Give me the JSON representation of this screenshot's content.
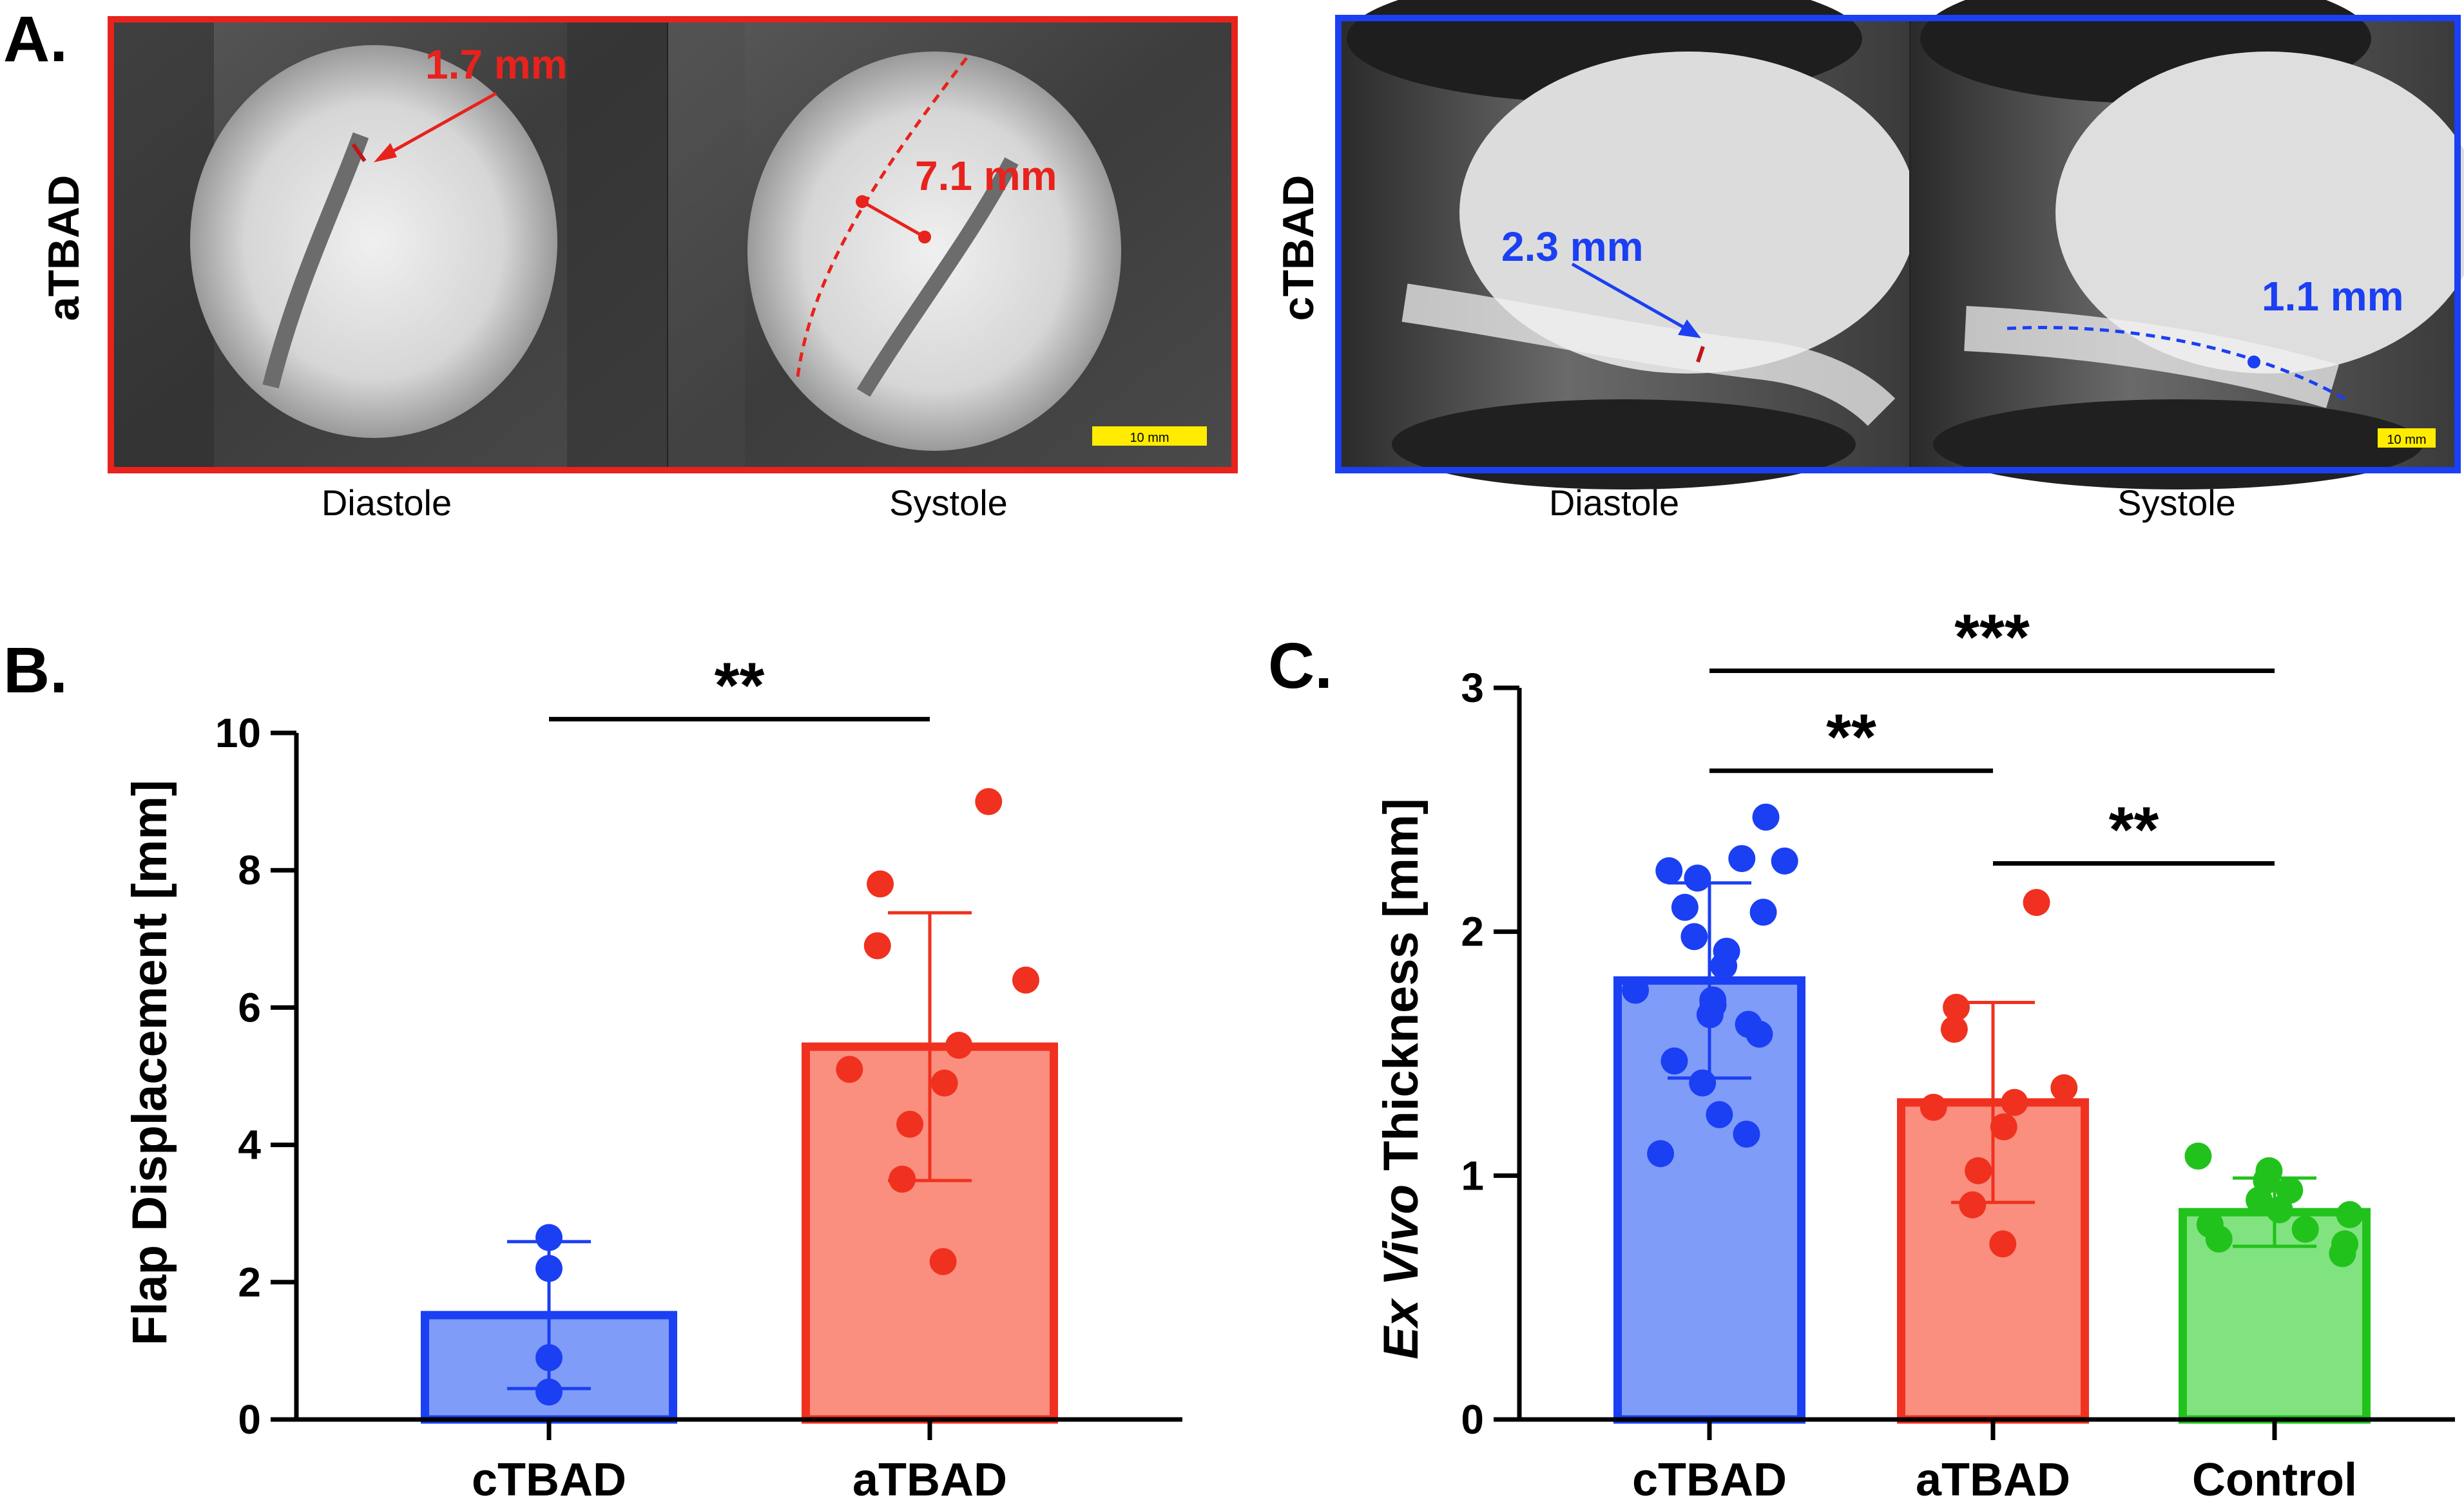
{
  "panel_a": {
    "label": "A.",
    "left_group": {
      "row_label": "aTBAD",
      "frames": [
        "Diastole",
        "Systole"
      ],
      "measure_diastole": "1.7 mm",
      "measure_systole": "7.1 mm",
      "scale_bar": "10 mm",
      "color": "#e8221c"
    },
    "right_group": {
      "row_label": "cTBAD",
      "frames": [
        "Diastole",
        "Systole"
      ],
      "measure_diastole": "2.3 mm",
      "measure_systole": "1.1 mm",
      "scale_bar": "10 mm",
      "color": "#1b3ff2"
    }
  },
  "chart_data": [
    {
      "type": "bar",
      "panel": "B.",
      "title": "",
      "xlabel": "",
      "ylabel": "Flap Displacement [mm]",
      "ylim": [
        0,
        10
      ],
      "yticks": [
        0,
        2,
        4,
        6,
        8,
        10
      ],
      "categories": [
        "cTBAD",
        "aTBAD"
      ],
      "means": [
        1.52,
        5.43
      ],
      "sd": [
        1.07,
        1.95
      ],
      "points": [
        [
          0.4,
          0.9,
          2.2,
          2.65
        ],
        [
          2.3,
          3.5,
          4.3,
          4.9,
          5.1,
          5.45,
          6.4,
          6.9,
          7.8,
          9.0
        ]
      ],
      "fill_colors": [
        "#7f9cf9",
        "#fa8f7f"
      ],
      "edge_colors": [
        "#1b3ff2",
        "#f0311f"
      ],
      "significance": [
        {
          "from": "cTBAD",
          "to": "aTBAD",
          "label": "**",
          "y": 10.2
        }
      ]
    },
    {
      "type": "bar",
      "panel": "C.",
      "title": "",
      "xlabel": "",
      "ylabel_italic": "Ex Vivo",
      "ylabel_rest": " Thickness [mm]",
      "ylim": [
        0,
        3
      ],
      "yticks": [
        0,
        1,
        2,
        3
      ],
      "categories": [
        "cTBAD",
        "aTBAD",
        "Control"
      ],
      "means": [
        1.8,
        1.3,
        0.85
      ],
      "sd": [
        0.4,
        0.41,
        0.14
      ],
      "points": [
        [
          1.09,
          1.17,
          1.25,
          1.38,
          1.47,
          1.58,
          1.62,
          1.66,
          1.7,
          1.72,
          1.76,
          1.86,
          1.92,
          1.98,
          2.08,
          2.1,
          2.22,
          2.25,
          2.29,
          2.3,
          2.47
        ],
        [
          0.72,
          0.88,
          1.02,
          1.2,
          1.28,
          1.3,
          1.36,
          1.6,
          1.69,
          2.12
        ],
        [
          0.68,
          0.72,
          0.74,
          0.78,
          0.8,
          0.84,
          0.86,
          0.9,
          0.94,
          0.98,
          1.02,
          1.08
        ]
      ],
      "fill_colors": [
        "#7f9cf9",
        "#fa8f7f",
        "#80e37f"
      ],
      "edge_colors": [
        "#1b3ff2",
        "#f0311f",
        "#21c21c"
      ],
      "significance": [
        {
          "from": "cTBAD",
          "to": "Control",
          "label": "***",
          "y": 3.07
        },
        {
          "from": "cTBAD",
          "to": "aTBAD",
          "label": "**",
          "y": 2.66
        },
        {
          "from": "aTBAD",
          "to": "Control",
          "label": "**",
          "y": 2.28
        }
      ]
    }
  ]
}
